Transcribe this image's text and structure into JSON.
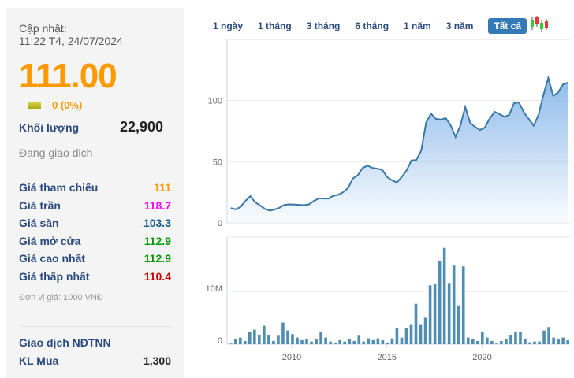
{
  "panel": {
    "update_label": "Cập nhật:",
    "update_time": "11:22 T4, 24/07/2024",
    "price": "111.00",
    "change": "0 (0%)",
    "volume_label": "Khối lượng",
    "volume_value": "22,900",
    "status": "Đang giao dịch",
    "rows": [
      {
        "label": "Giá tham chiếu",
        "value": "111",
        "color": "#ff9900"
      },
      {
        "label": "Giá trần",
        "value": "118.7",
        "color": "#ff00ff"
      },
      {
        "label": "Giá sàn",
        "value": "103.3",
        "color": "#1a5a8a"
      },
      {
        "label": "Giá mở cửa",
        "value": "112.9",
        "color": "#009900"
      },
      {
        "label": "Giá cao nhất",
        "value": "112.9",
        "color": "#009900"
      },
      {
        "label": "Giá thấp nhất",
        "value": "110.4",
        "color": "#cc0000"
      }
    ],
    "unit": "Đơn vị giá: 1000 VNĐ",
    "foreign_label": "Giao dịch NĐTNN",
    "buy_label": "KL Mua",
    "buy_value": "1,300"
  },
  "tabs": [
    {
      "label": "1 ngày"
    },
    {
      "label": "1 tháng"
    },
    {
      "label": "3 tháng"
    },
    {
      "label": "6 tháng"
    },
    {
      "label": "1 năm"
    },
    {
      "label": "3 năm"
    },
    {
      "label": "Tất cả",
      "active": true
    }
  ],
  "candlestick_icon": "candlestick-chart-icon",
  "chart_data": [
    {
      "type": "area",
      "x_range": [
        2006.8,
        2024.5
      ],
      "ylim": [
        0,
        150
      ],
      "yticks": [
        "0",
        "50",
        "100"
      ],
      "line_color": "#3a78a8",
      "fill_color": "#8fbbea",
      "values": [
        12.1,
        11,
        13,
        18,
        21.8,
        16.8,
        14.3,
        11.4,
        10,
        11,
        12.5,
        14.7,
        15.1,
        14.9,
        14.7,
        14.5,
        15.1,
        17.9,
        20,
        19.9,
        19.9,
        22.2,
        22.9,
        25,
        28.3,
        36.3,
        38.9,
        44.9,
        46.7,
        44.9,
        44.3,
        43.4,
        37.4,
        34.8,
        33,
        37.4,
        42.8,
        51,
        51.4,
        59,
        82,
        89.2,
        84.9,
        84.4,
        85.5,
        79.9,
        70.2,
        79.5,
        94.6,
        81.6,
        78.4,
        75.8,
        77.8,
        85.3,
        90.7,
        88.8,
        86.6,
        88.1,
        97.8,
        98.3,
        90.3,
        84.9,
        79.5,
        88.1,
        104.3,
        118.4,
        103.7,
        106.5,
        113,
        114.5
      ]
    },
    {
      "type": "bar",
      "x_range": [
        2006.8,
        2024.5
      ],
      "ylim": [
        0,
        20000000
      ],
      "yticks": [
        "0",
        "10M"
      ],
      "xticks": [
        "2010",
        "2015",
        "2020"
      ],
      "bar_color": "#4f8db3",
      "values": [
        0.1,
        1,
        1.25,
        0.6,
        2.4,
        2.75,
        1.75,
        3.5,
        1.75,
        0.6,
        1.6,
        4.1,
        2.6,
        1.9,
        1.25,
        0.75,
        0.9,
        0.5,
        0.9,
        2.4,
        1.25,
        0.5,
        0.25,
        0.75,
        0.5,
        0.9,
        0.6,
        1.6,
        0.5,
        1.1,
        0.75,
        1.1,
        0.75,
        0.25,
        1.1,
        3,
        1.25,
        3,
        3.65,
        7.65,
        3.65,
        5,
        11.15,
        11.5,
        15.75,
        18.25,
        11.6,
        14.9,
        7.35,
        14.75,
        1.25,
        0.9,
        0.6,
        2.25,
        1.25,
        0.6,
        0.1,
        0.6,
        0.9,
        1.75,
        2.4,
        2.4,
        0.9,
        0.35,
        0.5,
        0.5,
        2.6,
        3.25,
        1.25,
        0.9,
        1.25,
        0.75
      ],
      "value_unit": "M"
    }
  ]
}
